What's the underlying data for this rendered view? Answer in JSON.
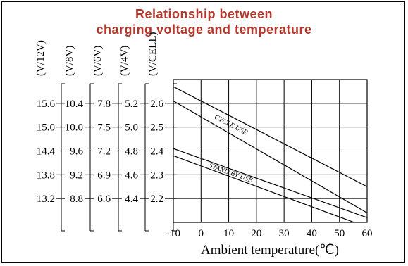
{
  "title_lines": [
    "Relationship between",
    "charging voltage and temperature"
  ],
  "colors": {
    "title": "#b5372b",
    "ink": "#000000"
  },
  "chart_data": {
    "type": "line",
    "title": "Relationship between charging voltage and temperature",
    "xlabel": "Ambient temperature(℃)",
    "x_ticks": [
      -10,
      0,
      10,
      20,
      30,
      40,
      50,
      60
    ],
    "xlim": [
      -10,
      60
    ],
    "ylim": [
      2.1,
      2.7
    ],
    "grid": true,
    "y_scales": [
      {
        "header": "(V/12V)",
        "ticks": [
          "15.6",
          "15.0",
          "14.4",
          "13.8",
          "13.2"
        ]
      },
      {
        "header": "(V/8V)",
        "ticks": [
          "10.4",
          "10.0",
          "9.6",
          "9.2",
          "8.8"
        ]
      },
      {
        "header": "(V/6V)",
        "ticks": [
          "7.8",
          "7.5",
          "7.2",
          "6.9",
          "6.6"
        ]
      },
      {
        "header": "(V/4V)",
        "ticks": [
          "5.2",
          "5.0",
          "4.8",
          "4.6",
          "4.4"
        ]
      },
      {
        "header": "(V/CELL)",
        "ticks": [
          "2.6",
          "2.5",
          "2.4",
          "2.3",
          "2.2"
        ]
      }
    ],
    "y_tick_values": [
      2.6,
      2.5,
      2.4,
      2.3,
      2.2
    ],
    "bands": [
      {
        "name": "CYCLE USE",
        "upper": {
          "x": [
            -10,
            60
          ],
          "y": [
            2.67,
            2.25
          ]
        },
        "lower": {
          "x": [
            -10,
            60
          ],
          "y": [
            2.61,
            2.14
          ]
        }
      },
      {
        "name": "STAND BY USE",
        "upper": {
          "x": [
            -10,
            60
          ],
          "y": [
            2.41,
            2.12
          ]
        },
        "lower": {
          "x": [
            -10,
            60
          ],
          "y": [
            2.38,
            2.08
          ]
        }
      }
    ]
  }
}
